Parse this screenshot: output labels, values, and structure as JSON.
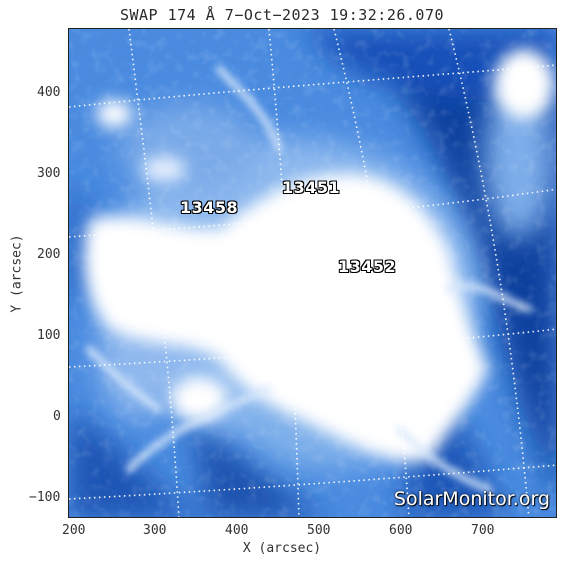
{
  "title": "SWAP 174 Å  7−Oct−2023 19:32:26.070",
  "x_axis": {
    "title": "X (arcsec)",
    "ticks": [
      "200",
      "300",
      "400",
      "500",
      "600",
      "700"
    ]
  },
  "y_axis": {
    "title": "Y (arcsec)",
    "ticks": [
      "400",
      "300",
      "200",
      "100",
      "0",
      "−100"
    ]
  },
  "active_regions": [
    "13451",
    "13458",
    "13452"
  ],
  "watermark": "SolarMonitor.org",
  "colors": {
    "background_blue": "#3c7fd8",
    "dark_blue": "#0a3a9a",
    "bright": "#ffffff"
  }
}
